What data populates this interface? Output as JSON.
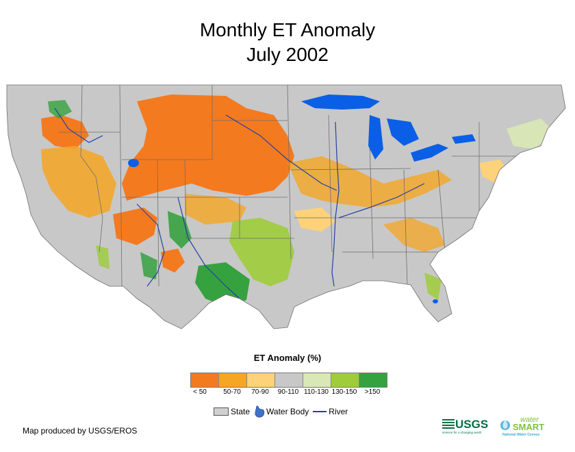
{
  "title": {
    "line1": "Monthly ET Anomaly",
    "line2": "July 2002"
  },
  "map": {
    "region": "conterminous United States",
    "colors": {
      "background_state": "#c8c8c8",
      "state_border": "#6e6e6e",
      "water_body": "#0a5fe6",
      "river": "#1f3fa8"
    }
  },
  "legend": {
    "title": "ET Anomaly (%)",
    "classes": [
      {
        "label": "< 50",
        "color": "#f47a20"
      },
      {
        "label": "50-70",
        "color": "#f5a623"
      },
      {
        "label": "70-90",
        "color": "#fdd27a"
      },
      {
        "label": "90-110",
        "color": "#c8c8c8"
      },
      {
        "label": "110-130",
        "color": "#d9e8b4"
      },
      {
        "label": "130-150",
        "color": "#9fcc3b"
      },
      {
        "label": ">150",
        "color": "#36a23f"
      }
    ]
  },
  "reference_legend": {
    "state_label": "State",
    "water_body_label": "Water Body",
    "river_label": "River"
  },
  "credit": "Map produced by USGS/EROS",
  "logos": {
    "usgs_text": "USGS",
    "usgs_tagline": "science for a changing world",
    "watersmart_water": "water",
    "watersmart_smart": "SMART",
    "watersmart_tagline": "National Water Census"
  }
}
